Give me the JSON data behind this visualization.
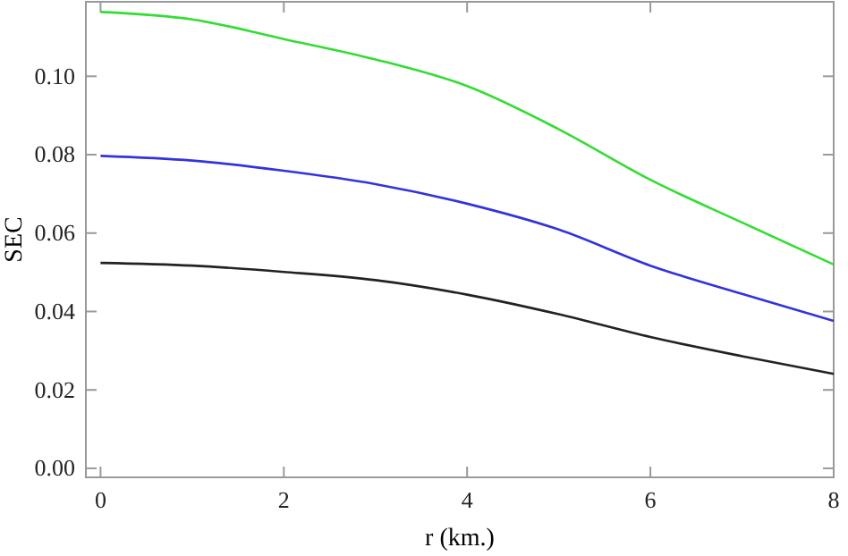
{
  "chart_data": {
    "type": "line",
    "xlabel": "r (km.)",
    "ylabel": "SEC",
    "x": [
      0,
      1,
      2,
      3,
      4,
      5,
      6,
      7,
      8
    ],
    "series": [
      {
        "color": "#33dd33",
        "values": [
          0.1164,
          0.1145,
          0.1095,
          0.1043,
          0.0975,
          0.0865,
          0.0736,
          0.0627,
          0.052
        ]
      },
      {
        "color": "#3333dd",
        "values": [
          0.0797,
          0.0785,
          0.0759,
          0.0725,
          0.0675,
          0.0609,
          0.0517,
          0.0445,
          0.0376
        ]
      },
      {
        "color": "#222222",
        "values": [
          0.0524,
          0.0517,
          0.0501,
          0.048,
          0.0443,
          0.0393,
          0.0335,
          0.0286,
          0.0241
        ]
      }
    ],
    "xlim": [
      -0.16,
      8.0
    ],
    "ylim": [
      -0.0023,
      0.119
    ],
    "xticks": [
      0,
      2,
      4,
      6,
      8
    ],
    "yticks": [
      {
        "value": 0,
        "label": "0.00"
      },
      {
        "value": 0.02,
        "label": "0.02"
      },
      {
        "value": 0.04,
        "label": "0.04"
      },
      {
        "value": 0.06,
        "label": "0.06"
      },
      {
        "value": 0.08,
        "label": "0.08"
      },
      {
        "value": 0.1,
        "label": "0.10"
      }
    ],
    "grid": false,
    "marker": "none",
    "line_style": "solid"
  }
}
